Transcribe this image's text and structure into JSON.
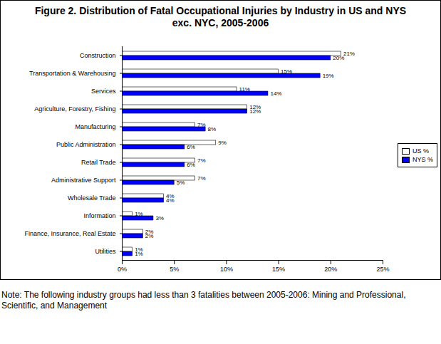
{
  "chart_data": {
    "type": "bar",
    "title": "Figure 2. Distribution of Fatal Occupational Injuries by Industry in US and NYS exc. NYC, 2005-2006",
    "note": "Note: The following industry groups had less than 3 fatalities between 2005-2006: Mining and Professional, Scientific, and Management",
    "orientation": "horizontal",
    "categories": [
      "Construction",
      "Transportation & Warehousing",
      "Services",
      "Agriculture, Forestry, Fishing",
      "Manufacturing",
      "Public Administration",
      "Retail Trade",
      "Administrative Support",
      "Wholesale Trade",
      "Information",
      "Finance, Insurance, Real Estate",
      "Utilities"
    ],
    "series": [
      {
        "name": "US %",
        "color": "#ffffff",
        "values": [
          21,
          15,
          11,
          12,
          7,
          9,
          7,
          7,
          4,
          1,
          2,
          1
        ],
        "value_labels": [
          "21%",
          "15%",
          "11%",
          "12%",
          "7%",
          "9%",
          "7%",
          "7%",
          "4%",
          "1%",
          "2%",
          "1%"
        ]
      },
      {
        "name": "NYS %",
        "color": "#0000ff",
        "values": [
          20,
          19,
          14,
          12,
          8,
          6,
          6,
          5,
          4,
          3,
          2,
          1
        ],
        "value_labels": [
          "20%",
          "19%",
          "14%",
          "12%",
          "8%",
          "6%",
          "6%",
          "5%",
          "4%",
          "3%",
          "2%",
          "1%"
        ]
      }
    ],
    "xlim": [
      0,
      25
    ],
    "xticks": [
      {
        "value": 0,
        "label": "0%"
      },
      {
        "value": 5,
        "label": "5%"
      },
      {
        "value": 10,
        "label": "10%"
      },
      {
        "value": 15,
        "label": "15%"
      },
      {
        "value": 20,
        "label": "20%"
      },
      {
        "value": 25,
        "label": "25%"
      }
    ],
    "data_labels": true,
    "grid": false,
    "legend": "right"
  }
}
